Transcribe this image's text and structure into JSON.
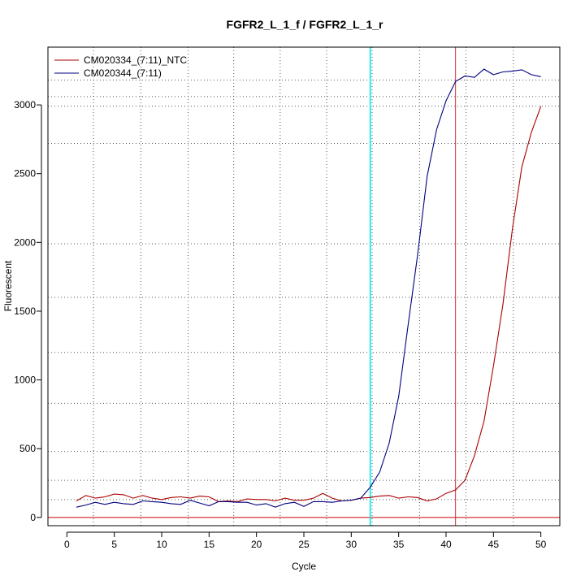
{
  "chart_data": {
    "type": "line",
    "title": "FGFR2_L_1_f / FGFR2_L_1_r",
    "xlabel": "Cycle",
    "ylabel": "Fluorescent",
    "xlim": [
      -2,
      52
    ],
    "ylim": [
      -60,
      3420
    ],
    "x_ticks": [
      0,
      5,
      10,
      15,
      20,
      25,
      30,
      35,
      40,
      45,
      50
    ],
    "y_ticks": [
      0,
      500,
      1000,
      1500,
      2000,
      2500,
      3000
    ],
    "grid": "dotted",
    "grid_x": [
      2.8,
      7.8,
      12.8,
      17.6,
      22.5,
      27.4,
      32.2,
      37.2,
      42.1,
      47.1
    ],
    "grid_y": [
      130,
      270,
      480,
      830,
      1200,
      1600,
      1990,
      2720,
      2990,
      3060,
      3180
    ],
    "legend_position": "top-left",
    "threshold_y": 0,
    "threshold_color": "#cc0000",
    "ct_lines": [
      {
        "x": 32.0,
        "color": "#00e5ee"
      },
      {
        "x": 41.0,
        "color": "#cc3333"
      }
    ],
    "series": [
      {
        "name": "CM020334_(7:11)_NTC",
        "color": "#aa0000",
        "x": [
          1,
          2,
          3,
          4,
          5,
          6,
          7,
          8,
          9,
          10,
          11,
          12,
          13,
          14,
          15,
          16,
          17,
          18,
          19,
          20,
          21,
          22,
          23,
          24,
          25,
          26,
          27,
          28,
          29,
          30,
          31,
          32,
          33,
          34,
          35,
          36,
          37,
          38,
          39,
          40,
          41,
          42,
          43,
          44,
          45,
          46,
          47,
          48,
          49,
          50
        ],
        "values": [
          120,
          160,
          140,
          150,
          170,
          165,
          140,
          160,
          140,
          130,
          145,
          150,
          140,
          155,
          150,
          115,
          120,
          115,
          135,
          130,
          130,
          120,
          140,
          125,
          125,
          140,
          175,
          140,
          120,
          125,
          140,
          145,
          155,
          160,
          140,
          150,
          145,
          120,
          135,
          175,
          200,
          270,
          450,
          700,
          1100,
          1550,
          2100,
          2550,
          2800,
          2990
        ]
      },
      {
        "name": "CM020344_(7:11)",
        "color": "#000080",
        "x": [
          1,
          2,
          3,
          4,
          5,
          6,
          7,
          8,
          9,
          10,
          11,
          12,
          13,
          14,
          15,
          16,
          17,
          18,
          19,
          20,
          21,
          22,
          23,
          24,
          25,
          26,
          27,
          28,
          29,
          30,
          31,
          32,
          33,
          34,
          35,
          36,
          37,
          38,
          39,
          40,
          41,
          42,
          43,
          44,
          45,
          46,
          47,
          48,
          49,
          50
        ],
        "values": [
          75,
          90,
          110,
          95,
          110,
          100,
          95,
          120,
          115,
          110,
          100,
          95,
          125,
          105,
          85,
          115,
          115,
          110,
          110,
          90,
          100,
          75,
          100,
          110,
          80,
          115,
          115,
          110,
          120,
          125,
          140,
          220,
          330,
          540,
          880,
          1400,
          1910,
          2480,
          2820,
          3030,
          3170,
          3210,
          3200,
          3260,
          3220,
          3240,
          3245,
          3255,
          3220,
          3205
        ]
      }
    ]
  }
}
